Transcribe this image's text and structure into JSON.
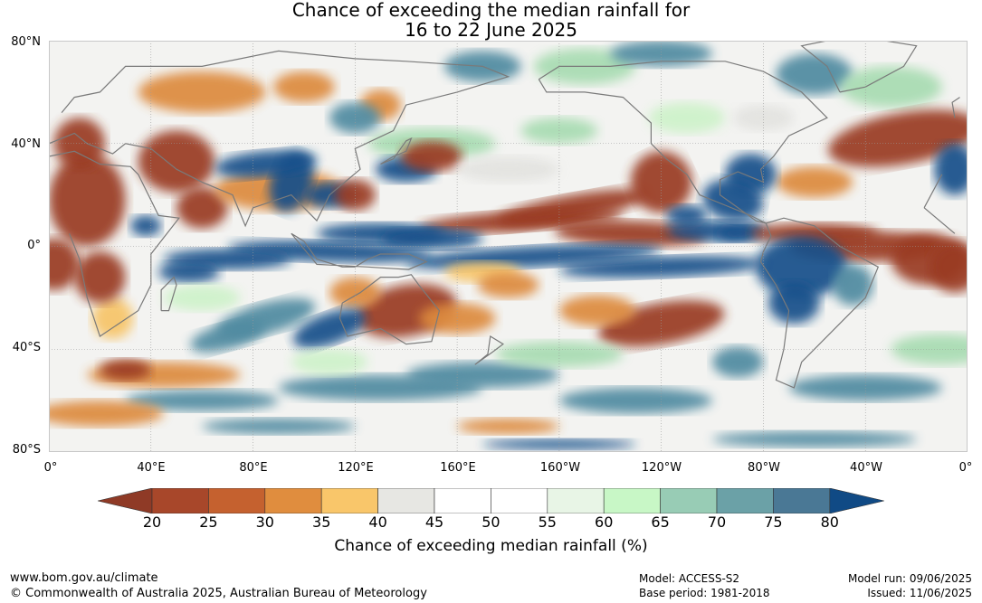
{
  "title": {
    "line1": "Chance of exceeding the median rainfall for",
    "line2": "16 to 22 June 2025"
  },
  "map": {
    "lat_labels": [
      "80°N",
      "40°N",
      "0°",
      "40°S",
      "80°S"
    ],
    "lon_labels": [
      "0°",
      "40°E",
      "80°E",
      "120°E",
      "160°E",
      "160°W",
      "120°W",
      "80°W",
      "40°W",
      "0°"
    ]
  },
  "colorbar": {
    "label": "Chance of exceeding median rainfall (%)",
    "ticks": [
      "20",
      "25",
      "30",
      "35",
      "40",
      "45",
      "50",
      "55",
      "60",
      "65",
      "70",
      "75",
      "80"
    ],
    "colors": [
      "#a8472a",
      "#c5612f",
      "#e08d3e",
      "#f9c66a",
      "#e7e7e3",
      "#ffffff",
      "#ffffff",
      "#e8f5e6",
      "#c8f7c6",
      "#98ccb5",
      "#6ba1a7",
      "#4a7895",
      "#124f8a"
    ],
    "below_color": "#8f3a26",
    "above_color": "#104a85"
  },
  "footer": {
    "url": "www.bom.gov.au/climate",
    "copyright": "© Commonwealth of Australia 2025, Australian Bureau of Meteorology",
    "model": "Model: ACCESS-S2",
    "base_period": "Base period: 1981-2018",
    "model_run": "Model run: 09/06/2025",
    "issued": "Issued: 11/06/2025"
  }
}
